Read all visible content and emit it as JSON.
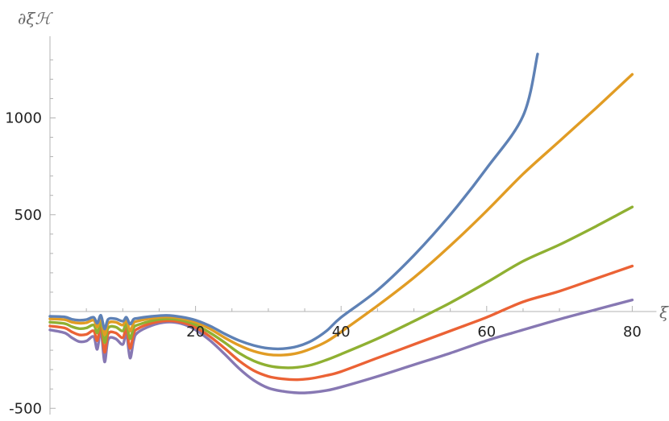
{
  "chart_data": {
    "type": "line",
    "xlabel": "ξ",
    "ylabel": "∂ξℋ",
    "xlim": [
      0,
      80
    ],
    "ylim": [
      -500,
      1400
    ],
    "x_ticks": [
      20,
      40,
      60,
      80
    ],
    "y_ticks": [
      -500,
      500,
      1000
    ],
    "x_tick_labels": [
      "20",
      "40",
      "60",
      "80"
    ],
    "y_tick_labels": [
      "-500",
      "500",
      "1000"
    ],
    "grid": false,
    "series": [
      {
        "color": "#5e81b5",
        "points": [
          [
            0,
            -25
          ],
          [
            2,
            -28
          ],
          [
            3,
            -40
          ],
          [
            4,
            -45
          ],
          [
            5,
            -42
          ],
          [
            6,
            -30
          ],
          [
            6.5,
            -60
          ],
          [
            7,
            -20
          ],
          [
            7.5,
            -90
          ],
          [
            8,
            -40
          ],
          [
            9,
            -38
          ],
          [
            10,
            -50
          ],
          [
            10.5,
            -30
          ],
          [
            11,
            -65
          ],
          [
            11.5,
            -40
          ],
          [
            12,
            -35
          ],
          [
            14,
            -25
          ],
          [
            16,
            -20
          ],
          [
            18,
            -28
          ],
          [
            20,
            -45
          ],
          [
            22,
            -75
          ],
          [
            24,
            -115
          ],
          [
            26,
            -150
          ],
          [
            28,
            -175
          ],
          [
            30,
            -190
          ],
          [
            32,
            -192
          ],
          [
            34,
            -180
          ],
          [
            36,
            -150
          ],
          [
            38,
            -100
          ],
          [
            40,
            -30
          ],
          [
            45,
            110
          ],
          [
            50,
            290
          ],
          [
            55,
            500
          ],
          [
            60,
            740
          ],
          [
            65,
            1010
          ],
          [
            67,
            1330
          ]
        ]
      },
      {
        "color": "#e19c24",
        "points": [
          [
            0,
            -38
          ],
          [
            2,
            -42
          ],
          [
            3,
            -55
          ],
          [
            4,
            -60
          ],
          [
            5,
            -58
          ],
          [
            6,
            -45
          ],
          [
            6.5,
            -80
          ],
          [
            7,
            -30
          ],
          [
            7.5,
            -120
          ],
          [
            8,
            -60
          ],
          [
            9,
            -55
          ],
          [
            10,
            -70
          ],
          [
            10.5,
            -40
          ],
          [
            11,
            -100
          ],
          [
            11.5,
            -60
          ],
          [
            12,
            -50
          ],
          [
            14,
            -35
          ],
          [
            16,
            -28
          ],
          [
            18,
            -35
          ],
          [
            20,
            -55
          ],
          [
            22,
            -90
          ],
          [
            24,
            -135
          ],
          [
            26,
            -175
          ],
          [
            28,
            -205
          ],
          [
            30,
            -222
          ],
          [
            32,
            -225
          ],
          [
            34,
            -215
          ],
          [
            36,
            -190
          ],
          [
            38,
            -155
          ],
          [
            40,
            -105
          ],
          [
            45,
            30
          ],
          [
            50,
            175
          ],
          [
            55,
            340
          ],
          [
            60,
            520
          ],
          [
            65,
            710
          ],
          [
            70,
            880
          ],
          [
            75,
            1050
          ],
          [
            80,
            1225
          ]
        ]
      },
      {
        "color": "#8fb032",
        "points": [
          [
            0,
            -55
          ],
          [
            2,
            -62
          ],
          [
            3,
            -78
          ],
          [
            4,
            -88
          ],
          [
            5,
            -85
          ],
          [
            6,
            -70
          ],
          [
            6.5,
            -110
          ],
          [
            7,
            -50
          ],
          [
            7.5,
            -160
          ],
          [
            8,
            -85
          ],
          [
            9,
            -80
          ],
          [
            10,
            -100
          ],
          [
            10.5,
            -60
          ],
          [
            11,
            -140
          ],
          [
            11.5,
            -85
          ],
          [
            12,
            -70
          ],
          [
            14,
            -48
          ],
          [
            16,
            -38
          ],
          [
            18,
            -45
          ],
          [
            20,
            -68
          ],
          [
            22,
            -110
          ],
          [
            24,
            -160
          ],
          [
            26,
            -215
          ],
          [
            28,
            -255
          ],
          [
            30,
            -280
          ],
          [
            32,
            -290
          ],
          [
            34,
            -288
          ],
          [
            36,
            -275
          ],
          [
            38,
            -250
          ],
          [
            40,
            -220
          ],
          [
            45,
            -140
          ],
          [
            50,
            -50
          ],
          [
            55,
            45
          ],
          [
            60,
            150
          ],
          [
            65,
            260
          ],
          [
            70,
            345
          ],
          [
            75,
            440
          ],
          [
            80,
            540
          ]
        ]
      },
      {
        "color": "#eb6235",
        "points": [
          [
            0,
            -75
          ],
          [
            2,
            -85
          ],
          [
            3,
            -105
          ],
          [
            4,
            -120
          ],
          [
            5,
            -118
          ],
          [
            6,
            -100
          ],
          [
            6.5,
            -150
          ],
          [
            7,
            -70
          ],
          [
            7.5,
            -210
          ],
          [
            8,
            -115
          ],
          [
            9,
            -110
          ],
          [
            10,
            -135
          ],
          [
            10.5,
            -85
          ],
          [
            11,
            -190
          ],
          [
            11.5,
            -115
          ],
          [
            12,
            -90
          ],
          [
            14,
            -60
          ],
          [
            16,
            -48
          ],
          [
            18,
            -55
          ],
          [
            20,
            -82
          ],
          [
            22,
            -130
          ],
          [
            24,
            -190
          ],
          [
            26,
            -255
          ],
          [
            28,
            -305
          ],
          [
            30,
            -335
          ],
          [
            32,
            -348
          ],
          [
            34,
            -352
          ],
          [
            36,
            -345
          ],
          [
            38,
            -330
          ],
          [
            40,
            -310
          ],
          [
            45,
            -240
          ],
          [
            50,
            -170
          ],
          [
            55,
            -100
          ],
          [
            60,
            -30
          ],
          [
            65,
            50
          ],
          [
            70,
            105
          ],
          [
            75,
            170
          ],
          [
            80,
            235
          ]
        ]
      },
      {
        "color": "#8778b3",
        "points": [
          [
            0,
            -95
          ],
          [
            2,
            -110
          ],
          [
            3,
            -135
          ],
          [
            4,
            -155
          ],
          [
            5,
            -152
          ],
          [
            6,
            -130
          ],
          [
            6.5,
            -195
          ],
          [
            7,
            -95
          ],
          [
            7.5,
            -260
          ],
          [
            8,
            -145
          ],
          [
            9,
            -140
          ],
          [
            10,
            -170
          ],
          [
            10.5,
            -110
          ],
          [
            11,
            -240
          ],
          [
            11.5,
            -150
          ],
          [
            12,
            -110
          ],
          [
            14,
            -72
          ],
          [
            16,
            -55
          ],
          [
            18,
            -62
          ],
          [
            20,
            -95
          ],
          [
            22,
            -150
          ],
          [
            24,
            -220
          ],
          [
            26,
            -295
          ],
          [
            28,
            -355
          ],
          [
            30,
            -395
          ],
          [
            32,
            -412
          ],
          [
            34,
            -420
          ],
          [
            36,
            -418
          ],
          [
            38,
            -408
          ],
          [
            40,
            -390
          ],
          [
            45,
            -335
          ],
          [
            50,
            -275
          ],
          [
            55,
            -215
          ],
          [
            60,
            -150
          ],
          [
            65,
            -95
          ],
          [
            70,
            -40
          ],
          [
            75,
            10
          ],
          [
            80,
            60
          ]
        ]
      }
    ]
  }
}
